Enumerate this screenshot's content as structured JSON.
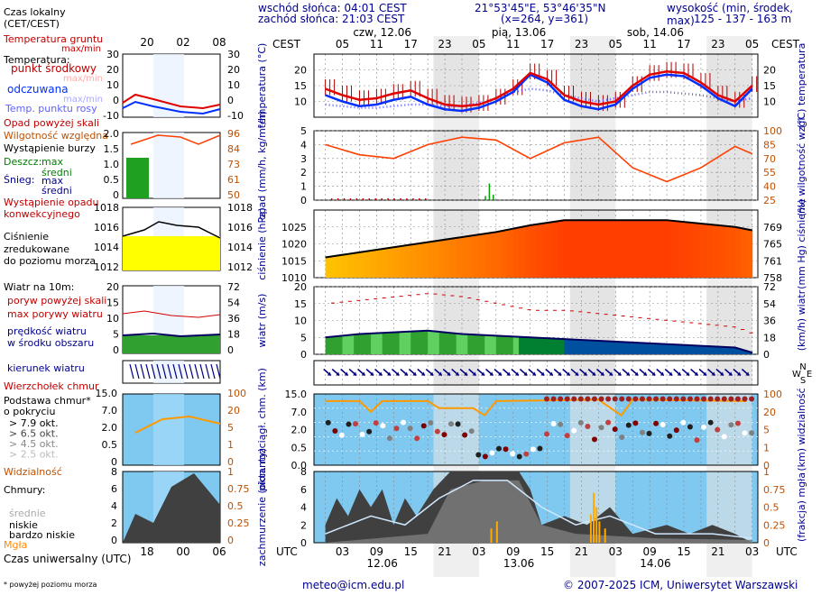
{
  "header": {
    "sunrise": "wschód słońca: 04:01 CEST",
    "sunset": "zachód słońca: 21:03 CEST",
    "coords": "21°53'45\"E, 53°46'35\"N",
    "grid": "(x=264,  y=361)",
    "altitude_label": "wysokość (min, środek, max)",
    "altitude_values": "125 - 137 - 163 m"
  },
  "time_axis": {
    "cest_label": "CEST",
    "utc_label": "UTC",
    "days_top": [
      "czw, 12.06",
      "pią, 13.06",
      "sob, 14.06"
    ],
    "hours_top": [
      "05",
      "11",
      "17",
      "23",
      "05",
      "11",
      "17",
      "23",
      "05",
      "11",
      "17",
      "23",
      "05"
    ],
    "hours_bottom": [
      "03",
      "09",
      "15",
      "21",
      "03",
      "09",
      "15",
      "21",
      "03",
      "09",
      "15",
      "21",
      "03"
    ],
    "days_bottom": [
      "12.06",
      "13.06",
      "14.06"
    ]
  },
  "legend": {
    "local_time": "Czas lokalny (CET/CEST)",
    "local_ticks": [
      "20",
      "02",
      "08"
    ],
    "utc_time": "Czas uniwersalny (UTC)",
    "utc_ticks": [
      "18",
      "00",
      "06"
    ],
    "ground_temp": "Temperatura gruntu",
    "ground_temp_sub": "max/min",
    "temperature": "Temperatura:",
    "midpoint": "punkt środkowy",
    "midpoint_sub": "max/min",
    "apparent": "odczuwana",
    "apparent_sub": "max/min",
    "dew_point": "Temp. punktu rosy",
    "temp_ticks": [
      "30",
      "20",
      "10",
      "0",
      "-10"
    ],
    "precip_over": "Opad powyżej skali",
    "humidity": "Wilgotność względna",
    "storm": "Wystąpienie burzy",
    "rain": "Deszcz:",
    "snow": "Śnieg:",
    "max": "max",
    "mean": "średni",
    "precip_occurrence": "Wystąpienie opadu konwekcyjnego",
    "precip_ticks": [
      "2.0",
      "1.5",
      "1.0",
      "0.5",
      "0"
    ],
    "hum_ticks": [
      "96",
      "84",
      "73",
      "61",
      "50"
    ],
    "pressure_title": "Ciśnienie zredukowane do poziomu morza",
    "pressure_ticks": [
      "1018",
      "1016",
      "1014",
      "1012"
    ],
    "wind_title": "Wiatr na 10m:",
    "gust_over": "poryw powyżej skali",
    "gust_max": "max porywy wiatru",
    "wind_mean": "prędkość wiatru w środku obszaru",
    "wind_ticks": [
      "20",
      "15",
      "10",
      "5",
      "0"
    ],
    "wind_kmh_ticks": [
      "72",
      "54",
      "36",
      "18",
      "0"
    ],
    "wind_dir": "kierunek wiatru",
    "cloud_top": "Wierzchołek chmur",
    "cloud_base": "Podstawa chmur* o pokryciu",
    "okt": [
      "> 7.9 okt.",
      "> 6.5 okt.",
      "> 4.5 okt.",
      "> 2.5 okt.",
      "> 0.1 okt."
    ],
    "visibility": "Widzialność",
    "cloud_ticks": [
      "15.0",
      "7.0",
      "2.0",
      "0.5",
      "0"
    ],
    "vis_ticks": [
      "100",
      "20",
      "5",
      "1",
      "0"
    ],
    "clouds": "Chmury:",
    "high": "wysokie",
    "middle": "średnie",
    "low": "niskie",
    "very_low": "bardzo niskie",
    "fog": "Mgła",
    "cover_ticks": [
      "8",
      "6",
      "4",
      "2",
      "0"
    ],
    "fog_ticks": [
      "1",
      "0.75",
      "0.5",
      "0.25",
      "0"
    ],
    "footnote": "* powyżej poziomu morza"
  },
  "panels": {
    "temperature": {
      "left_label": "temperatura (°C)",
      "right_label": "(°C) temperatura",
      "ticks": [
        "20",
        "15",
        "10"
      ]
    },
    "precip": {
      "left_label": "opad (mm/h, kg/m²/h)",
      "right_label": "(%) wilgotność wzgl.",
      "ticks": [
        "5",
        "4",
        "3",
        "2",
        "1",
        "0"
      ],
      "right_ticks": [
        "100",
        "85",
        "70",
        "55",
        "40",
        "25"
      ]
    },
    "pressure": {
      "left_label": "ciśnienie (hPa)",
      "right_label": "(mm Hg) ciśnienie",
      "ticks": [
        "1025",
        "1020",
        "1015",
        "1010"
      ],
      "right_ticks": [
        "769",
        "765",
        "761",
        "758"
      ]
    },
    "wind": {
      "left_label": "wiatr (m/s)",
      "right_label": "(km/h) wiatr",
      "ticks": [
        "20",
        "15",
        "10",
        "5",
        "0"
      ],
      "right_ticks": [
        "72",
        "54",
        "36",
        "18",
        "0"
      ]
    },
    "clouds": {
      "left_label": "pion. rozciągł. chm. (km)",
      "right_label": "(km) widzialność",
      "ticks": [
        "15.0",
        "7.0",
        "2.0",
        "0.5",
        "0.0"
      ],
      "right_ticks": [
        "100",
        "20",
        "5",
        "1",
        "0"
      ]
    },
    "cover": {
      "left_label": "zachmurzenie (oktanty)",
      "right_label": "(frakcja) mgła",
      "ticks": [
        "8",
        "6",
        "4",
        "2",
        "0"
      ],
      "right_ticks": [
        "1",
        "0.75",
        "0.5",
        "0.25",
        "0"
      ]
    }
  },
  "compass": {
    "n": "N",
    "w": "W",
    "e": "E",
    "s": "S"
  },
  "footer": {
    "email": "meteo@icm.edu.pl",
    "copyright": "© 2007-2025 ICM, Uniwersytet Warszawski"
  },
  "colors": {
    "temp": "#e00000",
    "apparent": "#0030ff",
    "dew": "#6060ff",
    "humidity": "#ff4000",
    "wind_gust": "#d00000",
    "wind_dir": "#000080",
    "visibility": "#ff9900",
    "label_blue": "#000090",
    "label_red": "#c00000",
    "label_orange": "#c05000"
  },
  "chart_data": [
    {
      "type": "line",
      "title": "temperatura",
      "ylabel": "°C",
      "ylim": [
        5,
        25
      ],
      "x_hours_cest": [
        2,
        5,
        8,
        11,
        14,
        17,
        20,
        23,
        26,
        29,
        32,
        35,
        38,
        41,
        44,
        47,
        50,
        53,
        56,
        59,
        62,
        65,
        68,
        71,
        74,
        77
      ],
      "series": [
        {
          "name": "punkt środkowy",
          "values": [
            14,
            12,
            10.5,
            11,
            12.5,
            13.5,
            11,
            9,
            8.5,
            9,
            11,
            14,
            19,
            17,
            12,
            10,
            9,
            10,
            15,
            18.5,
            19.5,
            19,
            16,
            12,
            10,
            15
          ]
        },
        {
          "name": "odczuwana",
          "values": [
            12,
            10,
            8.5,
            9,
            10.5,
            11.5,
            9,
            7.5,
            7,
            8,
            10,
            13,
            18.5,
            16,
            10.5,
            8.5,
            7.5,
            9,
            14,
            17.5,
            18.5,
            18,
            15,
            11,
            8.5,
            14
          ]
        },
        {
          "name": "Temp. punktu rosy",
          "values": [
            9,
            8.5,
            8,
            8,
            8.5,
            9,
            9,
            8.5,
            8.5,
            9.5,
            11,
            13,
            14,
            13.5,
            12,
            11,
            10,
            11,
            12,
            13,
            13,
            12.5,
            12,
            11,
            10,
            11
          ]
        }
      ]
    },
    {
      "type": "line",
      "title": "ciśnienie",
      "ylabel": "hPa",
      "ylim": [
        1010,
        1030
      ],
      "x_hours_cest": [
        2,
        8,
        14,
        20,
        26,
        32,
        38,
        44,
        50,
        56,
        62,
        68,
        74,
        77
      ],
      "series": [
        {
          "name": "ciśnienie",
          "values": [
            1016,
            1017.5,
            1019,
            1020.5,
            1022,
            1023.5,
            1025.5,
            1027,
            1027,
            1027,
            1027,
            1026,
            1025,
            1024
          ]
        }
      ]
    },
    {
      "type": "line",
      "title": "wiatr",
      "ylabel": "m/s",
      "ylim": [
        0,
        20
      ],
      "x_hours_cest": [
        2,
        8,
        14,
        20,
        26,
        32,
        38,
        44,
        50,
        56,
        62,
        68,
        74,
        77
      ],
      "series": [
        {
          "name": "max porywy wiatru",
          "values": [
            15,
            16,
            17,
            18,
            17,
            15,
            13,
            13,
            12,
            11,
            10,
            9,
            8,
            6
          ]
        },
        {
          "name": "prędkość wiatru w środku obszaru",
          "values": [
            5,
            6,
            6.5,
            7,
            6,
            5.5,
            5,
            4.5,
            4,
            3.5,
            3,
            2.5,
            2,
            0.5
          ]
        }
      ]
    },
    {
      "type": "line",
      "title": "wilgotność wzgl.",
      "ylabel": "%",
      "ylim": [
        25,
        100
      ],
      "x_hours_cest": [
        2,
        8,
        14,
        20,
        26,
        32,
        38,
        44,
        50,
        56,
        62,
        68,
        74,
        77
      ],
      "series": [
        {
          "name": "Wilgotność względna",
          "values": [
            85,
            74,
            70,
            85,
            93,
            90,
            70,
            87,
            93,
            60,
            45,
            60,
            83,
            75
          ]
        }
      ]
    }
  ]
}
